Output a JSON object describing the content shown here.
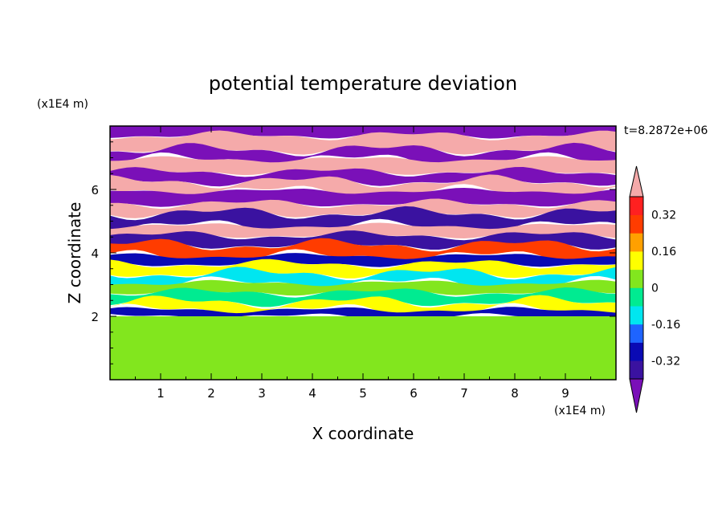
{
  "chart_data": {
    "type": "heatmap",
    "title": "potential temperature deviation",
    "xlabel": "X coordinate",
    "ylabel": "Z coordinate",
    "x_unit": "(x1E4 m)",
    "y_unit": "(x1E4 m)",
    "time_label": "t=8.2872e+06",
    "xlim": [
      0,
      10
    ],
    "ylim": [
      0,
      8
    ],
    "x_ticks": [
      "1",
      "2",
      "3",
      "4",
      "5",
      "6",
      "7",
      "8",
      "9"
    ],
    "y_ticks": [
      "2",
      "4",
      "6"
    ],
    "colorbar": {
      "tick_labels": [
        "0.32",
        "0.16",
        "0",
        "-0.16",
        "-0.32"
      ],
      "tick_values": [
        0.32,
        0.16,
        0,
        -0.16,
        -0.32
      ],
      "levels": [
        -0.4,
        -0.32,
        -0.24,
        -0.16,
        -0.08,
        0,
        0.08,
        0.16,
        0.24,
        0.32,
        0.4
      ],
      "colors": [
        "#7a10b8",
        "#3a12a0",
        "#0a0ab4",
        "#1e64ff",
        "#00e6f0",
        "#00eb91",
        "#82e61e",
        "#ffff00",
        "#ffa000",
        "#ff3c00",
        "#ff2020",
        "#f5aaaa"
      ],
      "extend": "both"
    },
    "bands": [
      {
        "z0": 7.7,
        "z1": 8.0,
        "value": -0.45
      },
      {
        "z0": 7.25,
        "z1": 7.7,
        "value": 0.45
      },
      {
        "z0": 6.95,
        "z1": 7.25,
        "value": -0.45
      },
      {
        "z0": 6.55,
        "z1": 6.95,
        "value": 0.45
      },
      {
        "z0": 6.25,
        "z1": 6.55,
        "value": -0.45
      },
      {
        "z0": 5.95,
        "z1": 6.25,
        "value": 0.45
      },
      {
        "z0": 5.55,
        "z1": 5.95,
        "value": -0.45
      },
      {
        "z0": 5.25,
        "z1": 5.55,
        "value": 0.45
      },
      {
        "z0": 4.85,
        "z1": 5.25,
        "value": -0.4
      },
      {
        "z0": 4.55,
        "z1": 4.85,
        "value": 0.4
      },
      {
        "z0": 4.25,
        "z1": 4.55,
        "value": -0.4
      },
      {
        "z0": 3.9,
        "z1": 4.25,
        "value": 0.3
      },
      {
        "z0": 3.65,
        "z1": 3.9,
        "value": -0.3
      },
      {
        "z0": 3.35,
        "z1": 3.65,
        "value": 0.1
      },
      {
        "z0": 3.05,
        "z1": 3.35,
        "value": -0.1
      },
      {
        "z0": 2.75,
        "z1": 3.05,
        "value": 0.05
      },
      {
        "z0": 2.45,
        "z1": 2.75,
        "value": -0.05
      },
      {
        "z0": 2.2,
        "z1": 2.45,
        "value": 0.15
      },
      {
        "z0": 2.0,
        "z1": 2.2,
        "value": -0.25
      },
      {
        "z0": 0.0,
        "z1": 2.0,
        "value": 0.03
      }
    ]
  }
}
